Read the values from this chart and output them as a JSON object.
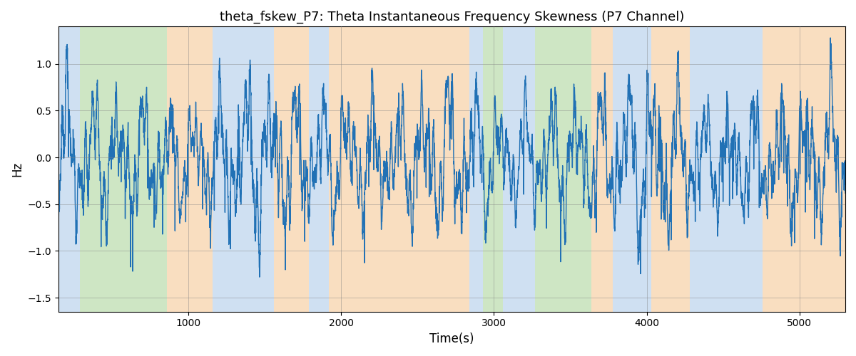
{
  "title": "theta_fskew_P7: Theta Instantaneous Frequency Skewness (P7 Channel)",
  "xlabel": "Time(s)",
  "ylabel": "Hz",
  "xlim": [
    150,
    5300
  ],
  "ylim": [
    -1.65,
    1.4
  ],
  "yticks": [
    -1.5,
    -1.0,
    -0.5,
    0.0,
    0.5,
    1.0
  ],
  "xticks": [
    1000,
    2000,
    3000,
    4000,
    5000
  ],
  "line_color": "#2171b5",
  "line_width": 1.0,
  "background_bands": [
    {
      "xmin": 150,
      "xmax": 290,
      "color": "#a8c8e8",
      "alpha": 0.55
    },
    {
      "xmin": 290,
      "xmax": 860,
      "color": "#9ecf8a",
      "alpha": 0.5
    },
    {
      "xmin": 860,
      "xmax": 1160,
      "color": "#f5c897",
      "alpha": 0.6
    },
    {
      "xmin": 1160,
      "xmax": 1560,
      "color": "#a8c8e8",
      "alpha": 0.55
    },
    {
      "xmin": 1560,
      "xmax": 1790,
      "color": "#f5c897",
      "alpha": 0.6
    },
    {
      "xmin": 1790,
      "xmax": 1920,
      "color": "#a8c8e8",
      "alpha": 0.55
    },
    {
      "xmin": 1920,
      "xmax": 2840,
      "color": "#f5c897",
      "alpha": 0.6
    },
    {
      "xmin": 2840,
      "xmax": 2930,
      "color": "#a8c8e8",
      "alpha": 0.55
    },
    {
      "xmin": 2930,
      "xmax": 3060,
      "color": "#9ecf8a",
      "alpha": 0.5
    },
    {
      "xmin": 3060,
      "xmax": 3270,
      "color": "#a8c8e8",
      "alpha": 0.55
    },
    {
      "xmin": 3270,
      "xmax": 3640,
      "color": "#9ecf8a",
      "alpha": 0.5
    },
    {
      "xmin": 3640,
      "xmax": 3780,
      "color": "#f5c897",
      "alpha": 0.6
    },
    {
      "xmin": 3780,
      "xmax": 4030,
      "color": "#a8c8e8",
      "alpha": 0.55
    },
    {
      "xmin": 4030,
      "xmax": 4280,
      "color": "#f5c897",
      "alpha": 0.6
    },
    {
      "xmin": 4280,
      "xmax": 4760,
      "color": "#a8c8e8",
      "alpha": 0.55
    },
    {
      "xmin": 4760,
      "xmax": 5300,
      "color": "#f5c897",
      "alpha": 0.6
    }
  ],
  "fig_width": 12.0,
  "fig_height": 5.0,
  "title_fontsize": 13,
  "label_fontsize": 12,
  "tick_fontsize": 10,
  "grid_color": "gray",
  "grid_alpha": 0.6,
  "grid_linewidth": 0.5
}
